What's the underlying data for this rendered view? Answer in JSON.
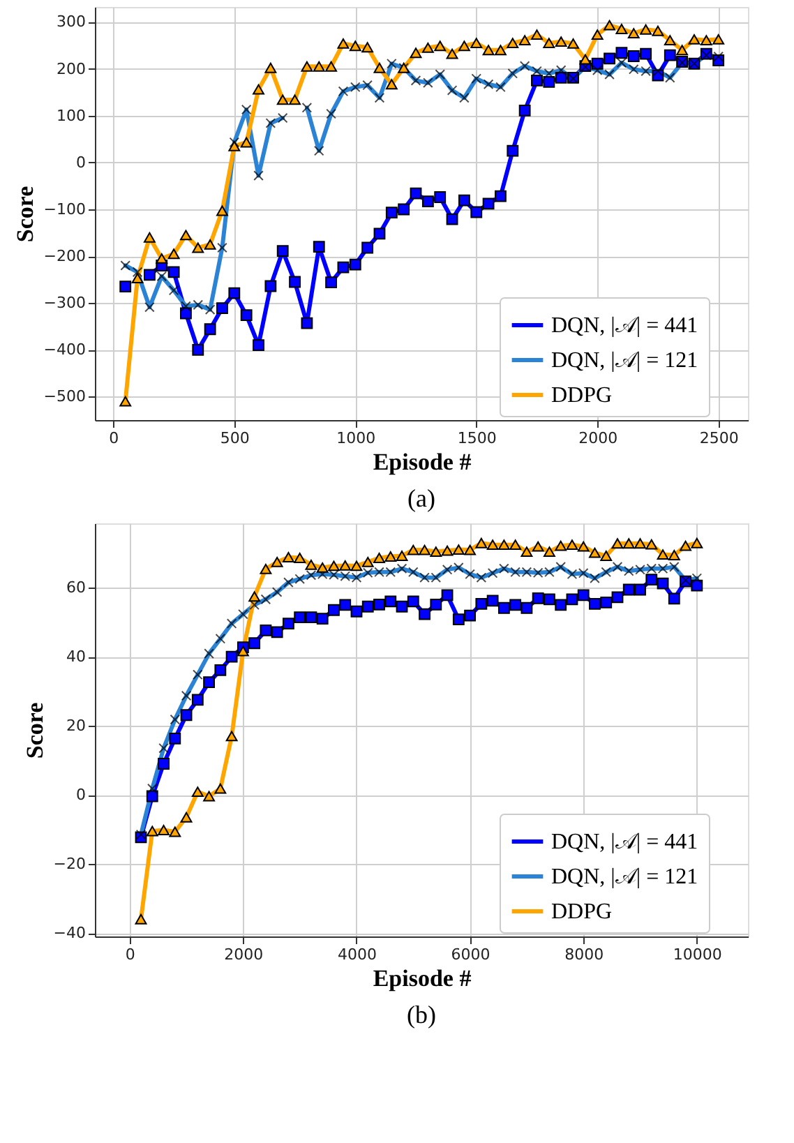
{
  "chart_data": [
    {
      "type": "line",
      "xlabel": "Episode #",
      "ylabel": "Score",
      "annotations": [
        "(a)"
      ],
      "grid": true,
      "legend": "bottom right",
      "xlim": [
        -76,
        2622
      ],
      "ylim": [
        -550,
        332
      ],
      "xticks": [
        0,
        500,
        1000,
        1500,
        2000,
        2500
      ],
      "yticks": [
        -500,
        -400,
        -300,
        -200,
        -100,
        0,
        100,
        200,
        300
      ],
      "x": [
        50,
        100,
        150,
        200,
        250,
        300,
        350,
        400,
        450,
        500,
        550,
        600,
        650,
        700,
        750,
        800,
        850,
        900,
        950,
        1000,
        1050,
        1100,
        1150,
        1200,
        1250,
        1300,
        1350,
        1400,
        1450,
        1500,
        1550,
        1600,
        1650,
        1700,
        1750,
        1800,
        1850,
        1900,
        1950,
        2000,
        2050,
        2100,
        2150,
        2200,
        2250,
        2300,
        2350,
        2400,
        2450,
        2500
      ],
      "series": [
        {
          "name": "DQN, |𝒜| = 441",
          "color": "#0000ff",
          "marker": "square",
          "values": [
            -265,
            null,
            -240,
            -220,
            -234,
            -322,
            -400,
            -356,
            -311,
            -279,
            -326,
            -390,
            -264,
            -189,
            -255,
            -343,
            -180,
            -256,
            -224,
            -218,
            -182,
            -152,
            -107,
            -100,
            -66,
            -83,
            -74,
            -121,
            -81,
            -106,
            -88,
            -72,
            25,
            111,
            175,
            172,
            181,
            181,
            206,
            211,
            222,
            234,
            227,
            232,
            186,
            229,
            215,
            211,
            232,
            218
          ]
        },
        {
          "name": "DQN, |𝒜| = 121",
          "color": "#2b83d6",
          "marker": "cross",
          "values": [
            -220,
            -234,
            -309,
            -243,
            -273,
            -307,
            -304,
            -314,
            -182,
            43,
            113,
            -28,
            84,
            95,
            null,
            117,
            25,
            104,
            152,
            161,
            165,
            138,
            211,
            202,
            175,
            170,
            188,
            154,
            138,
            179,
            167,
            161,
            190,
            206,
            195,
            190,
            197,
            179,
            204,
            197,
            188,
            213,
            199,
            195,
            195,
            181,
            213,
            211,
            229,
            226
          ]
        },
        {
          "name": "DDPG",
          "color": "#ffa500",
          "marker": "triangle",
          "values": [
            -510,
            -247,
            -160,
            -205,
            -195,
            -155,
            -182,
            -175,
            -103,
            35,
            43,
            156,
            202,
            134,
            134,
            205,
            205,
            205,
            254,
            249,
            246,
            202,
            167,
            202,
            234,
            245,
            249,
            232,
            249,
            255,
            240,
            240,
            255,
            261,
            273,
            255,
            258,
            254,
            220,
            273,
            293,
            285,
            276,
            284,
            281,
            261,
            240,
            263,
            261,
            263
          ]
        }
      ]
    },
    {
      "type": "line",
      "xlabel": "Episode #",
      "ylabel": "Score",
      "annotations": [
        "(b)"
      ],
      "grid": true,
      "legend": "bottom right",
      "xlim": [
        -612,
        10900
      ],
      "ylim": [
        -41,
        78.6
      ],
      "xticks": [
        0,
        2000,
        4000,
        6000,
        8000,
        10000
      ],
      "yticks": [
        -40,
        -20,
        0,
        20,
        40,
        60
      ],
      "x": [
        200,
        400,
        600,
        800,
        1000,
        1200,
        1400,
        1600,
        1800,
        2000,
        2200,
        2400,
        2600,
        2800,
        3000,
        3200,
        3400,
        3600,
        3800,
        4000,
        4200,
        4400,
        4600,
        4800,
        5000,
        5200,
        5400,
        5600,
        5800,
        6000,
        6200,
        6400,
        6600,
        6800,
        7000,
        7200,
        7400,
        7600,
        7800,
        8000,
        8200,
        8400,
        8600,
        8800,
        9000,
        9200,
        9400,
        9600,
        9800,
        10000
      ],
      "series": [
        {
          "name": "DQN, |𝒜| = 441",
          "color": "#0000ff",
          "marker": "square",
          "values": [
            -12.3,
            -0.4,
            9,
            16.3,
            23.1,
            27.5,
            32.6,
            36.1,
            40,
            42.7,
            43.9,
            47.6,
            47.1,
            49.6,
            51.4,
            51.4,
            51,
            53.5,
            55,
            53.1,
            54.5,
            55.1,
            56,
            54.5,
            56,
            52.3,
            55.1,
            57.8,
            50.8,
            51.9,
            55.3,
            56.2,
            54.1,
            55,
            54.1,
            56.9,
            56.6,
            55,
            56.6,
            57.8,
            55.3,
            55.7,
            57.2,
            59.4,
            59.4,
            62.3,
            61.2,
            56.8,
            61.8,
            60.6
          ]
        },
        {
          "name": "DQN, |𝒜| = 121",
          "color": "#2b83d6",
          "marker": "cross",
          "values": [
            -11.5,
            1.8,
            13.5,
            21.8,
            28.7,
            34.8,
            40.9,
            45.2,
            49.6,
            52.3,
            55,
            56.6,
            58.7,
            61.5,
            62.5,
            63.6,
            63.9,
            63.7,
            63.3,
            62.9,
            64.3,
            64.5,
            64.5,
            65.5,
            64.5,
            62.9,
            62.9,
            65.2,
            65.8,
            63.9,
            62.9,
            64.2,
            65.5,
            64.5,
            64.5,
            64.3,
            64.5,
            66,
            63.9,
            64.2,
            62.7,
            64.5,
            66,
            64.8,
            65.2,
            65.5,
            65.5,
            66,
            62.1,
            62.7
          ]
        },
        {
          "name": "DDPG",
          "color": "#ffa500",
          "marker": "triangle",
          "values": [
            -36,
            -10.5,
            -10.2,
            -10.7,
            -6.5,
            0.9,
            -0.4,
            1.8,
            17,
            41.6,
            57.4,
            65.4,
            67.4,
            68.8,
            68.6,
            66.6,
            65.8,
            66.3,
            66.4,
            66.3,
            67.4,
            68.6,
            69,
            69.2,
            70.9,
            70.9,
            70.4,
            70.7,
            71,
            70.9,
            72.9,
            72.4,
            72.4,
            72.4,
            70.4,
            71.9,
            70.4,
            72.1,
            72.4,
            71.9,
            70.1,
            69.2,
            72.8,
            72.8,
            72.8,
            72.5,
            69.6,
            69.4,
            72.1,
            72.9
          ]
        }
      ]
    }
  ]
}
